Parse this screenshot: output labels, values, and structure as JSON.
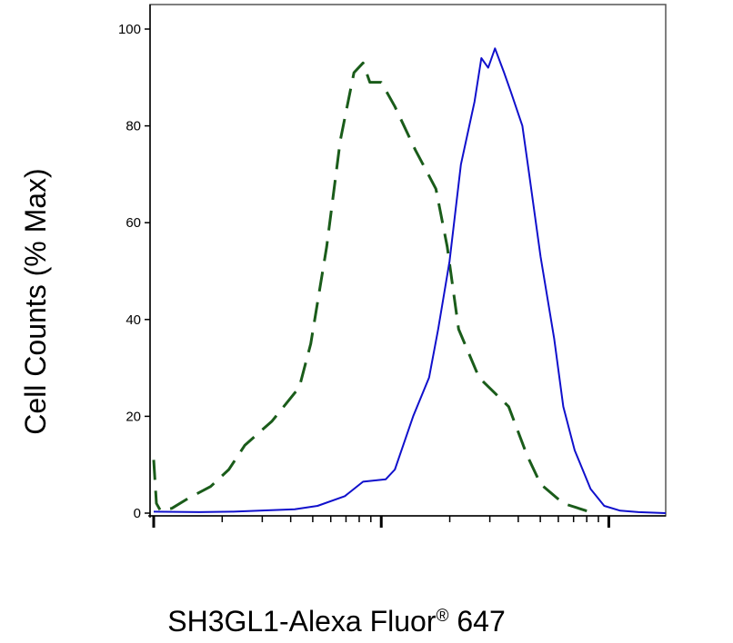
{
  "chart_data": {
    "type": "line",
    "xlabel": "SH3GL1-Alexa Fluor",
    "xlabel_superscript": "®",
    "xlabel_suffix": " 647",
    "ylabel": "Cell Counts (% Max)",
    "ylim": [
      0,
      100
    ],
    "y_ticks": [
      0,
      20,
      40,
      60,
      80,
      100
    ],
    "y_tick_labels": [
      "0",
      "20",
      "40",
      "60",
      "80",
      "100"
    ],
    "x_scale": "log",
    "xlim_decades": [
      0,
      2.25
    ],
    "x_major_ticks": [
      0,
      1,
      2
    ],
    "x_tick_labels_shown": false,
    "grid": false,
    "legend": "none",
    "series": [
      {
        "style": "dashed",
        "color": "#1a5c1a",
        "points": [
          [
            0.0,
            11
          ],
          [
            0.012,
            2
          ],
          [
            0.03,
            0.5
          ],
          [
            0.08,
            1
          ],
          [
            0.15,
            3
          ],
          [
            0.25,
            5.5
          ],
          [
            0.33,
            9
          ],
          [
            0.4,
            14
          ],
          [
            0.52,
            19
          ],
          [
            0.64,
            26
          ],
          [
            0.69,
            35
          ],
          [
            0.76,
            55
          ],
          [
            0.82,
            77
          ],
          [
            0.88,
            91
          ],
          [
            0.92,
            93
          ],
          [
            0.95,
            89
          ],
          [
            1.0,
            89
          ],
          [
            1.06,
            84
          ],
          [
            1.15,
            75
          ],
          [
            1.24,
            67
          ],
          [
            1.29,
            55
          ],
          [
            1.34,
            38
          ],
          [
            1.43,
            28
          ],
          [
            1.56,
            22
          ],
          [
            1.64,
            12
          ],
          [
            1.7,
            6
          ],
          [
            1.8,
            2
          ],
          [
            1.9,
            0.5
          ],
          [
            1.95,
            0
          ]
        ]
      },
      {
        "style": "solid",
        "color": "#1010cc",
        "points": [
          [
            0.0,
            0.3
          ],
          [
            0.2,
            0.2
          ],
          [
            0.35,
            0.3
          ],
          [
            0.62,
            0.8
          ],
          [
            0.72,
            1.5
          ],
          [
            0.84,
            3.5
          ],
          [
            0.92,
            6.5
          ],
          [
            1.02,
            7
          ],
          [
            1.06,
            9
          ],
          [
            1.14,
            20
          ],
          [
            1.21,
            28
          ],
          [
            1.25,
            38
          ],
          [
            1.3,
            52
          ],
          [
            1.35,
            72
          ],
          [
            1.41,
            85
          ],
          [
            1.44,
            94
          ],
          [
            1.47,
            92
          ],
          [
            1.5,
            96
          ],
          [
            1.54,
            91
          ],
          [
            1.57,
            87
          ],
          [
            1.62,
            80
          ],
          [
            1.65,
            70
          ],
          [
            1.7,
            53
          ],
          [
            1.76,
            36
          ],
          [
            1.8,
            22
          ],
          [
            1.85,
            13
          ],
          [
            1.92,
            5
          ],
          [
            1.98,
            1.5
          ],
          [
            2.05,
            0.5
          ],
          [
            2.13,
            0.2
          ],
          [
            2.25,
            0
          ]
        ]
      }
    ]
  }
}
